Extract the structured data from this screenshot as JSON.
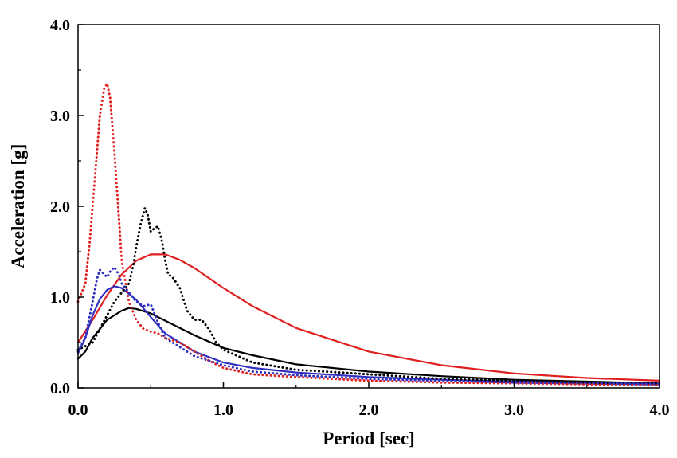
{
  "chart_data": {
    "type": "line",
    "title": "",
    "xlabel": "Period [sec]",
    "ylabel": "Acceleration [g]",
    "xlim": [
      0,
      4
    ],
    "ylim": [
      0,
      4
    ],
    "xticks": [
      "0.0",
      "1.0",
      "2.0",
      "3.0",
      "4.0"
    ],
    "yticks": [
      "0.0",
      "1.0",
      "2.0",
      "3.0",
      "4.0"
    ],
    "grid": false,
    "legend": "none",
    "series": [
      {
        "color": "#e02020",
        "style": "solid",
        "x": [
          0.0,
          0.1,
          0.2,
          0.3,
          0.4,
          0.5,
          0.6,
          0.7,
          0.8,
          1.0,
          1.2,
          1.5,
          2.0,
          2.5,
          3.0,
          3.5,
          4.0
        ],
        "y": [
          0.5,
          0.75,
          1.02,
          1.25,
          1.4,
          1.47,
          1.47,
          1.41,
          1.32,
          1.1,
          0.9,
          0.66,
          0.4,
          0.25,
          0.16,
          0.11,
          0.08
        ]
      },
      {
        "color": "#000000",
        "style": "solid",
        "x": [
          0.0,
          0.05,
          0.1,
          0.2,
          0.3,
          0.35,
          0.4,
          0.5,
          0.6,
          0.8,
          1.0,
          1.2,
          1.5,
          2.0,
          2.5,
          3.0,
          3.5,
          4.0
        ],
        "y": [
          0.32,
          0.4,
          0.55,
          0.75,
          0.85,
          0.88,
          0.87,
          0.82,
          0.74,
          0.58,
          0.44,
          0.36,
          0.26,
          0.18,
          0.13,
          0.09,
          0.07,
          0.05
        ]
      },
      {
        "color": "#3030c0",
        "style": "solid",
        "x": [
          0.0,
          0.05,
          0.1,
          0.15,
          0.2,
          0.25,
          0.3,
          0.4,
          0.5,
          0.6,
          0.8,
          1.0,
          1.2,
          1.5,
          2.0,
          2.5,
          3.0,
          3.5,
          4.0
        ],
        "y": [
          0.38,
          0.55,
          0.8,
          0.98,
          1.08,
          1.12,
          1.1,
          0.97,
          0.78,
          0.6,
          0.4,
          0.28,
          0.22,
          0.17,
          0.12,
          0.09,
          0.07,
          0.06,
          0.05
        ]
      },
      {
        "color": "#e02020",
        "style": "dotted",
        "x": [
          0.0,
          0.05,
          0.08,
          0.12,
          0.15,
          0.18,
          0.2,
          0.22,
          0.25,
          0.28,
          0.3,
          0.35,
          0.4,
          0.45,
          0.5,
          0.55,
          0.6,
          0.7,
          0.8,
          0.9,
          1.0,
          1.2,
          1.5,
          2.0,
          2.5,
          3.0,
          3.5,
          4.0
        ],
        "y": [
          0.95,
          1.15,
          1.6,
          2.4,
          3.0,
          3.3,
          3.35,
          3.2,
          2.6,
          1.9,
          1.4,
          0.95,
          0.75,
          0.65,
          0.62,
          0.6,
          0.55,
          0.5,
          0.4,
          0.3,
          0.22,
          0.15,
          0.12,
          0.08,
          0.06,
          0.05,
          0.04,
          0.03
        ]
      },
      {
        "color": "#000000",
        "style": "dotted",
        "x": [
          0.0,
          0.1,
          0.15,
          0.2,
          0.25,
          0.3,
          0.35,
          0.38,
          0.4,
          0.43,
          0.46,
          0.48,
          0.5,
          0.52,
          0.55,
          0.58,
          0.6,
          0.62,
          0.65,
          0.7,
          0.75,
          0.8,
          0.85,
          0.9,
          0.95,
          1.0,
          1.1,
          1.2,
          1.5,
          2.0,
          2.5,
          3.0,
          3.5,
          4.0
        ],
        "y": [
          0.42,
          0.5,
          0.65,
          0.8,
          0.95,
          1.05,
          1.15,
          1.35,
          1.55,
          1.8,
          1.98,
          1.9,
          1.72,
          1.75,
          1.78,
          1.6,
          1.4,
          1.25,
          1.22,
          1.1,
          0.85,
          0.75,
          0.75,
          0.65,
          0.5,
          0.42,
          0.35,
          0.28,
          0.2,
          0.15,
          0.1,
          0.08,
          0.06,
          0.05
        ]
      },
      {
        "color": "#3030c0",
        "style": "dotted",
        "x": [
          0.0,
          0.05,
          0.1,
          0.13,
          0.15,
          0.18,
          0.2,
          0.22,
          0.25,
          0.28,
          0.3,
          0.35,
          0.4,
          0.45,
          0.5,
          0.55,
          0.6,
          0.7,
          0.8,
          1.0,
          1.2,
          1.5,
          2.0,
          2.5,
          3.0,
          3.5,
          4.0
        ],
        "y": [
          0.4,
          0.55,
          0.95,
          1.2,
          1.3,
          1.25,
          1.22,
          1.28,
          1.33,
          1.25,
          1.15,
          1.05,
          0.95,
          0.9,
          0.92,
          0.72,
          0.55,
          0.45,
          0.35,
          0.25,
          0.18,
          0.14,
          0.1,
          0.08,
          0.06,
          0.05,
          0.04
        ]
      }
    ]
  }
}
